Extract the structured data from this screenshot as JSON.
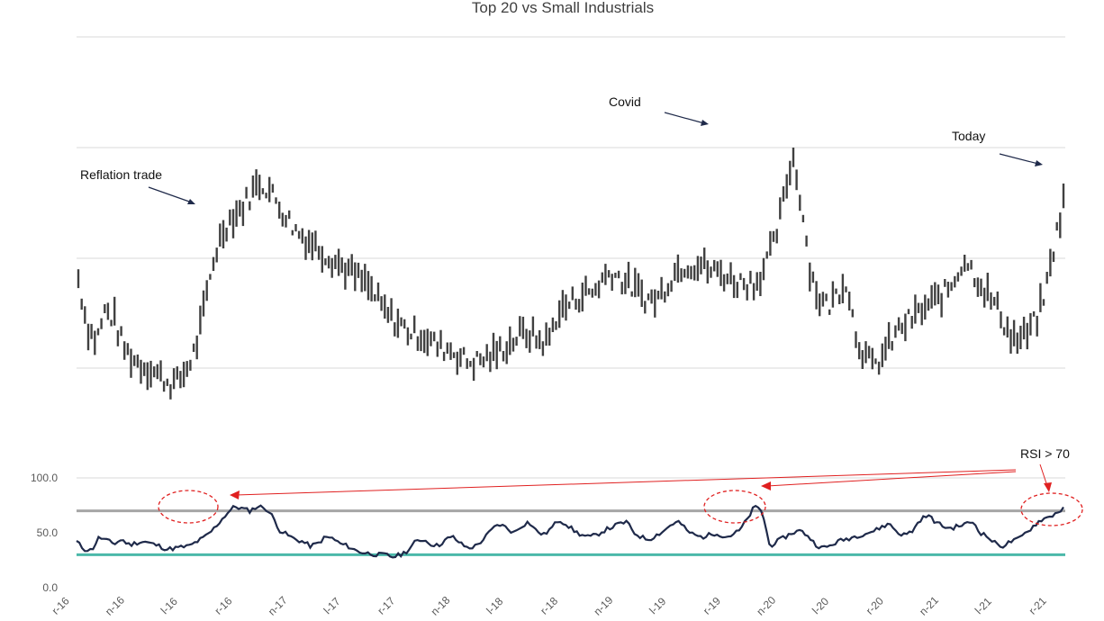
{
  "chart_data": {
    "type": "line",
    "title": "Top 20 vs Small Industrials",
    "annotations": [
      {
        "id": "reflation",
        "text": "Reflation trade"
      },
      {
        "id": "covid",
        "text": "Covid"
      },
      {
        "id": "today",
        "text": "Today"
      },
      {
        "id": "rsi",
        "text": "RSI > 70"
      }
    ],
    "x_tick_labels": [
      "r-16",
      "n-16",
      "l-16",
      "r-16",
      "n-17",
      "l-17",
      "r-17",
      "n-18",
      "l-18",
      "r-18",
      "n-19",
      "l-19",
      "r-19",
      "n-20",
      "l-20",
      "r-20",
      "n-21",
      "l-21",
      "r-21"
    ],
    "upper_panel": {
      "series": [
        {
          "type": "weekly-range",
          "values": [
            0.56,
            0.42,
            0.38,
            0.47,
            0.44,
            0.36,
            0.33,
            0.31,
            0.3,
            0.28,
            0.26,
            0.26,
            0.3,
            0.36,
            0.48,
            0.62,
            0.7,
            0.74,
            0.76,
            0.8,
            0.84,
            0.82,
            0.78,
            0.74,
            0.7,
            0.68,
            0.66,
            0.64,
            0.62,
            0.6,
            0.58,
            0.56,
            0.54,
            0.5,
            0.46,
            0.44,
            0.42,
            0.4,
            0.4,
            0.38,
            0.36,
            0.36,
            0.34,
            0.32,
            0.32,
            0.33,
            0.34,
            0.36,
            0.38,
            0.4,
            0.4,
            0.38,
            0.38,
            0.46,
            0.48,
            0.5,
            0.52,
            0.52,
            0.56,
            0.58,
            0.56,
            0.54,
            0.52,
            0.5,
            0.5,
            0.54,
            0.58,
            0.6,
            0.6,
            0.6,
            0.58,
            0.58,
            0.56,
            0.55,
            0.55,
            0.55,
            0.6,
            0.66,
            0.78,
            0.92,
            0.78,
            0.58,
            0.5,
            0.48,
            0.52,
            0.56,
            0.4,
            0.34,
            0.3,
            0.34,
            0.38,
            0.42,
            0.44,
            0.46,
            0.48,
            0.5,
            0.52,
            0.56,
            0.62,
            0.58,
            0.54,
            0.5,
            0.46,
            0.4,
            0.38,
            0.4,
            0.44,
            0.52,
            0.66,
            0.78
          ]
        }
      ]
    },
    "lower_panel": {
      "name": "RSI",
      "ylim": [
        0,
        100
      ],
      "y_ticks": [
        "100.0",
        "50.0",
        "0.0"
      ],
      "reference_lines": [
        70,
        30
      ],
      "series": [
        {
          "name": "RSI",
          "values": [
            42,
            35,
            34,
            46,
            43,
            40,
            44,
            39,
            41,
            42,
            40,
            38,
            35,
            36,
            37,
            38,
            42,
            46,
            52,
            60,
            68,
            74,
            72,
            70,
            74,
            73,
            65,
            52,
            48,
            44,
            42,
            38,
            40,
            46,
            45,
            40,
            38,
            34,
            32,
            31,
            30,
            30,
            28,
            30,
            34,
            42,
            44,
            40,
            38,
            44,
            46,
            40,
            36,
            38,
            44,
            52,
            58,
            55,
            50,
            56,
            60,
            52,
            48,
            54,
            62,
            58,
            52,
            48,
            46,
            48,
            52,
            55,
            58,
            60,
            50,
            46,
            44,
            48,
            52,
            58,
            60,
            52,
            48,
            46,
            48,
            50,
            46,
            48,
            52,
            62,
            74,
            70,
            38,
            42,
            46,
            50,
            52,
            48,
            40,
            36,
            38,
            42,
            44,
            46,
            48,
            50,
            52,
            56,
            58,
            50,
            48,
            52,
            62,
            66,
            60,
            56,
            54,
            56,
            58,
            60,
            50,
            46,
            40,
            38,
            42,
            44,
            50,
            56,
            62,
            64,
            68,
            72
          ]
        }
      ]
    }
  },
  "colors": {
    "price": "#404040",
    "rsi": "#1f2a4a",
    "ref_70": "#a6a6a6",
    "ref_30": "#4bb8a9",
    "gridline": "#d9d9d9",
    "annotation_red": "#e02020",
    "annotation_arrow": "#1f2a4a"
  }
}
